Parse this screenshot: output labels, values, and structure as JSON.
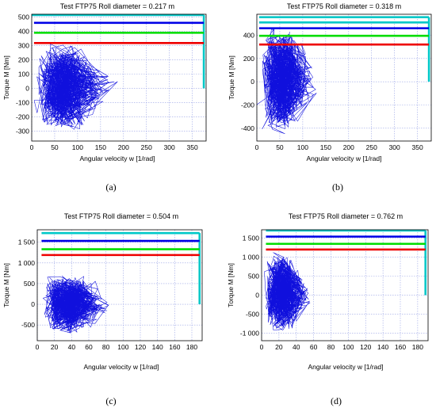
{
  "figure": {
    "panels": [
      {
        "caption": "(a)",
        "chart_data": {
          "type": "line",
          "title": "Test  FTP75  Roll diameter = 0.217  m",
          "xlabel": "Angular velocity w [1/rad]",
          "ylabel": "Torque M [Nm]",
          "xlim": [
            0,
            380
          ],
          "ylim": [
            -370,
            520
          ],
          "xticks": [
            0,
            50,
            100,
            150,
            200,
            250,
            300,
            350
          ],
          "xtick_labels": [
            "0",
            "50",
            "100",
            "150",
            "200",
            "250",
            "300",
            "350"
          ],
          "yticks": [
            -300,
            -200,
            -100,
            0,
            100,
            200,
            300,
            400,
            500
          ],
          "ytick_labels": [
            "-300",
            "-200",
            "-100",
            "0",
            "100",
            "200",
            "300",
            "400",
            "500"
          ],
          "grid": true,
          "colors": {
            "cyan": "#00c8c8",
            "blue": "#0000e6",
            "green": "#00dd00",
            "red": "#ee0000",
            "data": "#1010dd"
          },
          "limit_lines": [
            {
              "color": "cyan",
              "y": 515,
              "x0": 0,
              "x1": 375,
              "drop_to": 0
            },
            {
              "color": "blue",
              "y": 460,
              "x0": 5,
              "x1": 375
            },
            {
              "color": "green",
              "y": 390,
              "x0": 5,
              "x1": 375
            },
            {
              "color": "red",
              "y": 318,
              "x0": 5,
              "x1": 375
            }
          ],
          "envelope": {
            "x_max_main": 130,
            "x_max_far": 235,
            "y_min": -355,
            "y_max": 360
          }
        }
      },
      {
        "caption": "(b)",
        "chart_data": {
          "type": "line",
          "title": "Test  FTP75  Roll diameter = 0.318  m",
          "xlabel": "Angular velocity w [1/rad]",
          "ylabel": "Torque M [Nm]",
          "xlim": [
            0,
            380
          ],
          "ylim": [
            -510,
            580
          ],
          "xticks": [
            0,
            50,
            100,
            150,
            200,
            250,
            300,
            350
          ],
          "xtick_labels": [
            "0",
            "50",
            "100",
            "150",
            "200",
            "250",
            "300",
            "350"
          ],
          "yticks": [
            -400,
            -200,
            0,
            200,
            400
          ],
          "ytick_labels": [
            "-400",
            "-200",
            "0",
            "200",
            "400"
          ],
          "grid": true,
          "colors": {
            "cyan": "#00c8c8",
            "blue": "#0000e6",
            "green": "#00dd00",
            "red": "#ee0000",
            "data": "#1010dd"
          },
          "limit_lines": [
            {
              "color": "cyan",
              "y": 555,
              "x0": 5,
              "x1": 375,
              "drop_to": 0
            },
            {
              "color": "cyan",
              "y": 510,
              "x0": 5,
              "x1": 375
            },
            {
              "color": "blue",
              "y": 460,
              "x0": 5,
              "x1": 375
            },
            {
              "color": "green",
              "y": 395,
              "x0": 5,
              "x1": 375
            },
            {
              "color": "red",
              "y": 320,
              "x0": 5,
              "x1": 375
            }
          ],
          "envelope": {
            "x_max_main": 95,
            "x_max_far": 160,
            "y_min": -500,
            "y_max": 545
          }
        }
      },
      {
        "caption": "(c)",
        "chart_data": {
          "type": "line",
          "title": "Test  FTP75  Roll diameter = 0.504  m",
          "xlabel": "Angular velocity w [1/rad]",
          "ylabel": "Torque M [Nm]",
          "xlim": [
            0,
            192
          ],
          "ylim": [
            -880,
            1800
          ],
          "xticks": [
            0,
            20,
            40,
            60,
            80,
            100,
            120,
            140,
            160,
            180
          ],
          "xtick_labels": [
            "0",
            "20",
            "40",
            "60",
            "80",
            "100",
            "120",
            "140",
            "160",
            "180"
          ],
          "yticks": [
            -500,
            0,
            500,
            1000,
            1500
          ],
          "ytick_labels": [
            "-500",
            "0",
            "500",
            "1 000",
            "1 500"
          ],
          "grid": true,
          "colors": {
            "cyan": "#00c8c8",
            "blue": "#0000e6",
            "green": "#00dd00",
            "red": "#ee0000",
            "data": "#1010dd"
          },
          "limit_lines": [
            {
              "color": "cyan",
              "y": 1720,
              "x0": 5,
              "x1": 189,
              "drop_to": 0
            },
            {
              "color": "blue",
              "y": 1530,
              "x0": 5,
              "x1": 189
            },
            {
              "color": "green",
              "y": 1330,
              "x0": 5,
              "x1": 189
            },
            {
              "color": "red",
              "y": 1190,
              "x0": 5,
              "x1": 189
            }
          ],
          "envelope": {
            "x_max_main": 63,
            "x_max_far": 100,
            "y_min": -820,
            "y_max": 850
          }
        }
      },
      {
        "caption": "(d)",
        "chart_data": {
          "type": "line",
          "title": "Test  FTP75  Roll diameter = 0.762  m",
          "xlabel": "Angular velocity w [1/rad]",
          "ylabel": "Torque M [Nm]",
          "xlim": [
            0,
            192
          ],
          "ylim": [
            -1200,
            1720
          ],
          "xticks": [
            0,
            20,
            40,
            60,
            80,
            100,
            120,
            140,
            160,
            180
          ],
          "xtick_labels": [
            "0",
            "20",
            "40",
            "60",
            "80",
            "100",
            "120",
            "140",
            "160",
            "180"
          ],
          "yticks": [
            -1000,
            -500,
            0,
            500,
            1000,
            1500
          ],
          "ytick_labels": [
            "-1 000",
            "-500",
            "0",
            "500",
            "1 000",
            "1 500"
          ],
          "grid": true,
          "colors": {
            "cyan": "#00c8c8",
            "blue": "#0000e6",
            "green": "#00dd00",
            "red": "#ee0000",
            "data": "#1010dd"
          },
          "limit_lines": [
            {
              "color": "cyan",
              "y": 1700,
              "x0": 5,
              "x1": 189,
              "drop_to": 0
            },
            {
              "color": "blue",
              "y": 1540,
              "x0": 5,
              "x1": 189
            },
            {
              "color": "green",
              "y": 1350,
              "x0": 5,
              "x1": 189
            },
            {
              "color": "red",
              "y": 1200,
              "x0": 5,
              "x1": 189
            }
          ],
          "envelope": {
            "x_max_main": 40,
            "x_max_far": 68,
            "y_min": -1150,
            "y_max": 1280
          }
        }
      }
    ]
  }
}
